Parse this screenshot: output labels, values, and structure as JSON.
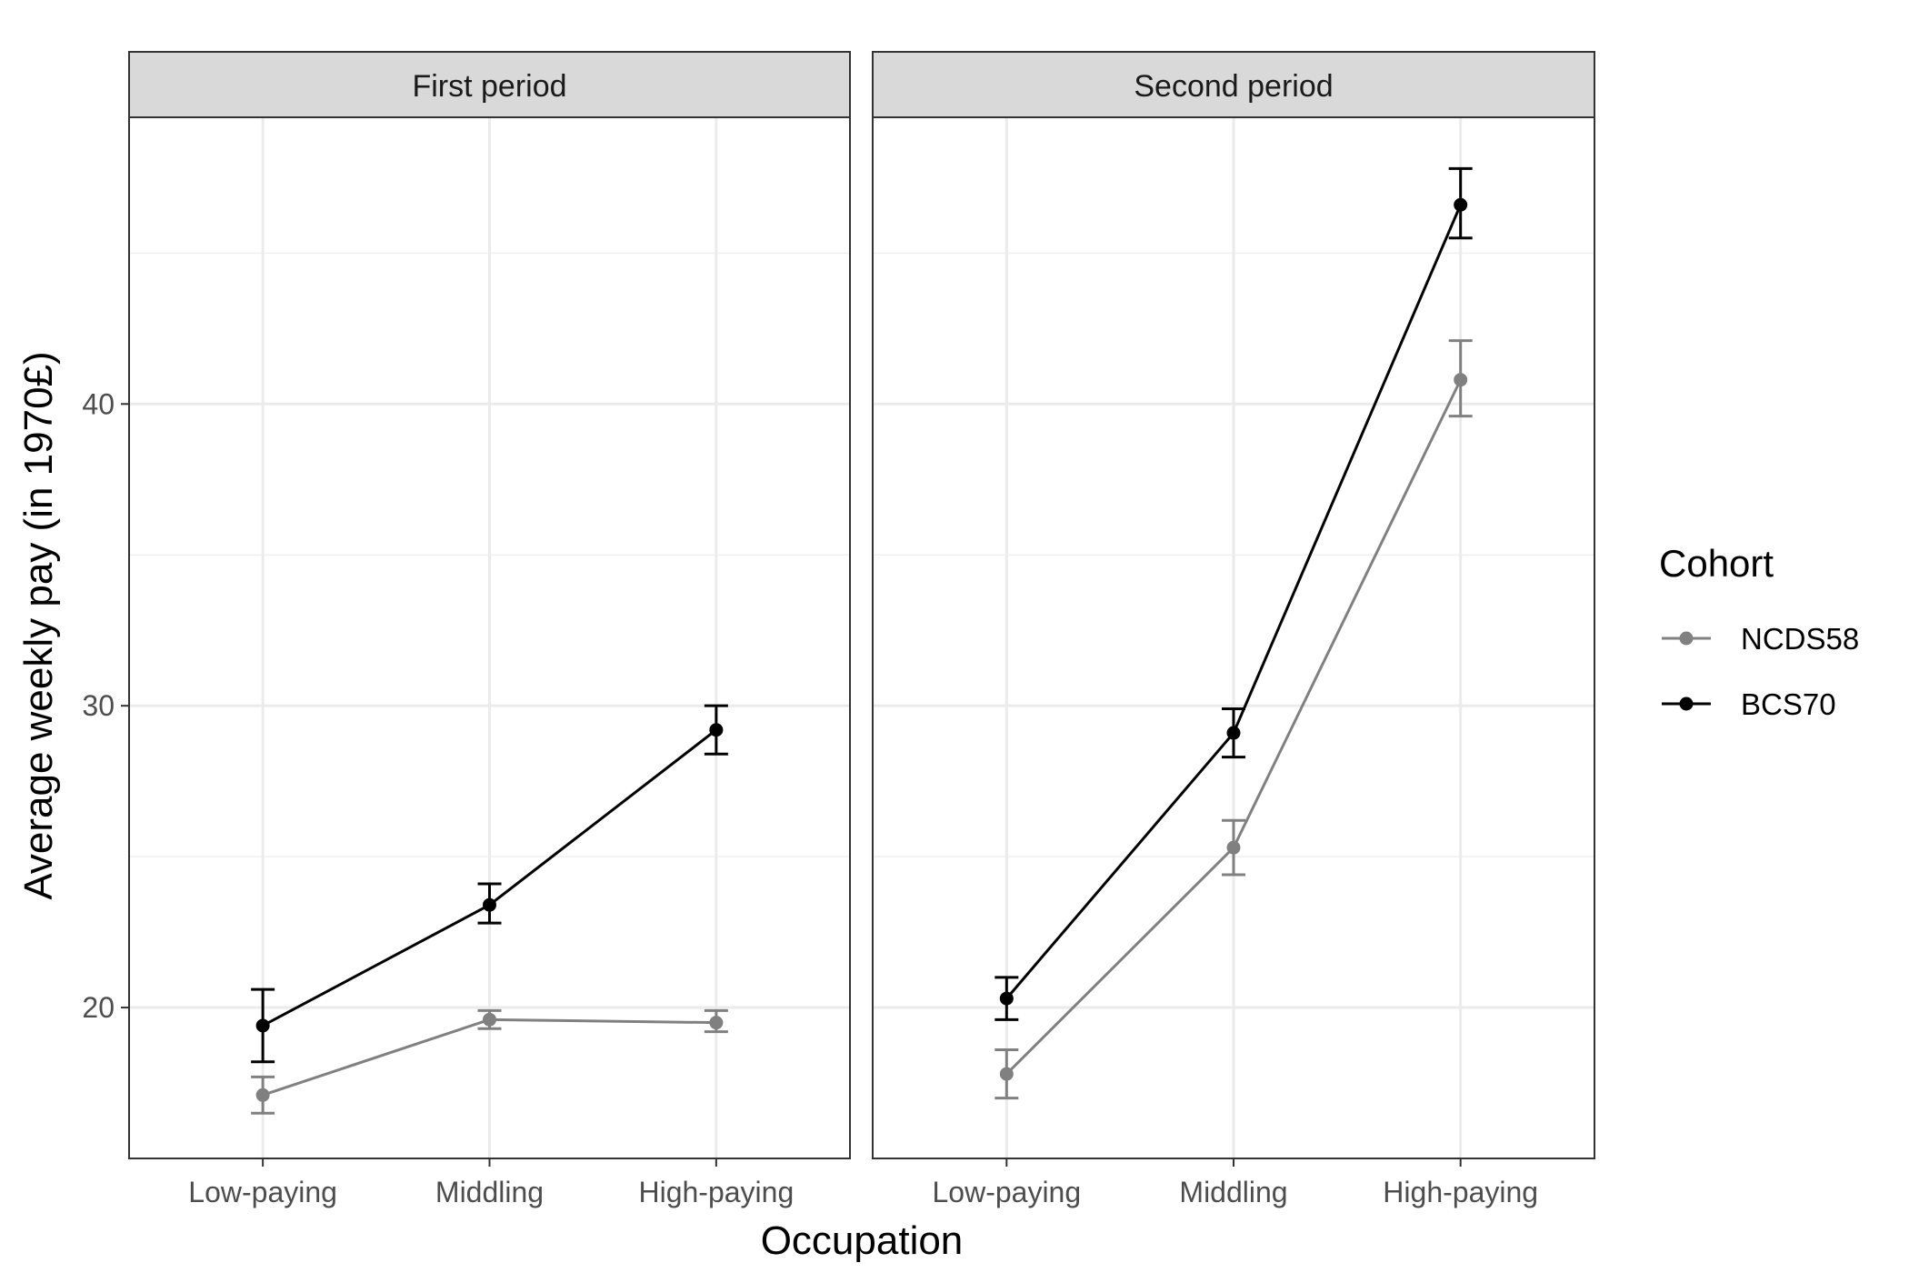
{
  "chart_data": {
    "type": "line",
    "xlabel": "Occupation",
    "ylabel": "Average weekly pay (in 1970£)",
    "categories": [
      "Low-paying",
      "Middling",
      "High-paying"
    ],
    "ylim": [
      15,
      49.5
    ],
    "yticks": [
      20,
      30,
      40
    ],
    "grid": true,
    "legend": {
      "title": "Cohort",
      "position": "right"
    },
    "colors": {
      "NCDS58": "#808080",
      "BCS70": "#000000"
    },
    "panels": [
      {
        "title": "First period",
        "series": [
          {
            "name": "NCDS58",
            "values": [
              17.1,
              19.6,
              19.5
            ],
            "lower": [
              16.5,
              19.3,
              19.2
            ],
            "upper": [
              17.7,
              19.9,
              19.9
            ]
          },
          {
            "name": "BCS70",
            "values": [
              19.4,
              23.4,
              29.2
            ],
            "lower": [
              18.2,
              22.8,
              28.4
            ],
            "upper": [
              20.6,
              24.1,
              30.0
            ]
          }
        ]
      },
      {
        "title": "Second period",
        "series": [
          {
            "name": "NCDS58",
            "values": [
              17.8,
              25.3,
              40.8
            ],
            "lower": [
              17.0,
              24.4,
              39.6
            ],
            "upper": [
              18.6,
              26.2,
              42.1
            ]
          },
          {
            "name": "BCS70",
            "values": [
              20.3,
              29.1,
              46.6
            ],
            "lower": [
              19.6,
              28.3,
              45.5
            ],
            "upper": [
              21.0,
              29.9,
              47.8
            ]
          }
        ]
      }
    ]
  }
}
